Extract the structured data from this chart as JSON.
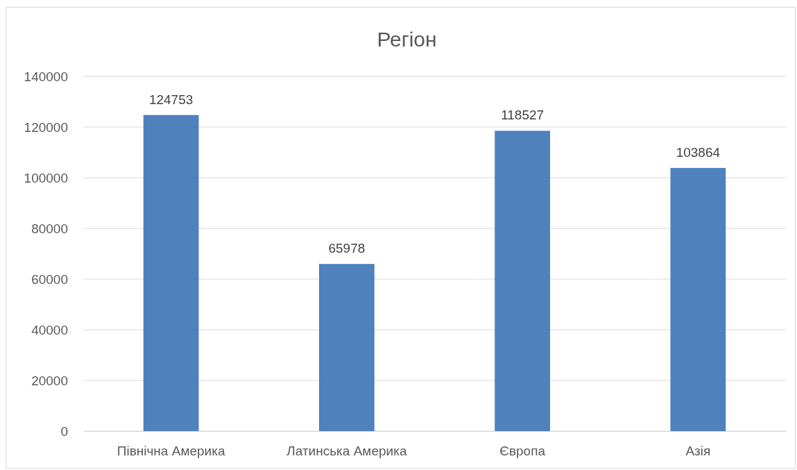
{
  "chart_data": {
    "type": "bar",
    "title": "Регіон",
    "categories": [
      "Північна Америка",
      "Латинська Америка",
      "Європа",
      "Азія"
    ],
    "values": [
      124753,
      65978,
      118527,
      103864
    ],
    "color": "#4f81bd",
    "ylim": [
      0,
      140000
    ],
    "yticks": [
      0,
      20000,
      40000,
      60000,
      80000,
      100000,
      120000,
      140000
    ],
    "grid": "y",
    "data_labels": true
  }
}
